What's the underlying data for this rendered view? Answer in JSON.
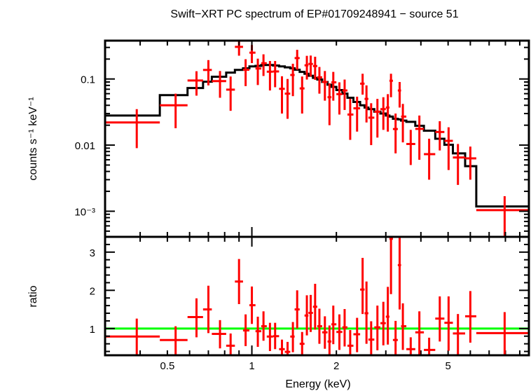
{
  "chart_data": [
    {
      "type": "scatter",
      "panel": "spectrum",
      "title": "Swift−XRT PC spectrum of EP#01709248941 − source 51",
      "ylabel": "counts s⁻¹ keV⁻¹",
      "xlabel": "Energy (keV)",
      "xscale": "log",
      "yscale": "log",
      "xlim": [
        0.3,
        9.7
      ],
      "ylim": [
        0.00041,
        0.38
      ],
      "x_ticks": [
        {
          "v": 0.5,
          "label": "0.5"
        },
        {
          "v": 1,
          "label": "1"
        },
        {
          "v": 2,
          "label": "2"
        },
        {
          "v": 5,
          "label": "5"
        }
      ],
      "y_ticks": [
        {
          "v": 0.1,
          "label": "0.1"
        },
        {
          "v": 0.01,
          "label": "0.01"
        },
        {
          "v": 0.001,
          "label": "10⁻³"
        }
      ],
      "data_color": "#ff0000",
      "model_color": "#000000",
      "bins": [
        [
          0.3,
          0.47
        ],
        [
          0.47,
          0.59
        ],
        [
          0.59,
          0.67
        ],
        [
          0.67,
          0.72
        ],
        [
          0.72,
          0.81
        ],
        [
          0.81,
          0.87
        ],
        [
          0.87,
          0.93
        ],
        [
          0.93,
          0.98
        ],
        [
          0.98,
          1.03
        ],
        [
          1.03,
          1.08
        ],
        [
          1.08,
          1.13
        ],
        [
          1.13,
          1.19
        ],
        [
          1.19,
          1.25
        ],
        [
          1.25,
          1.31
        ],
        [
          1.31,
          1.37
        ],
        [
          1.37,
          1.42
        ],
        [
          1.42,
          1.48
        ],
        [
          1.48,
          1.54
        ],
        [
          1.54,
          1.59
        ],
        [
          1.59,
          1.65
        ],
        [
          1.65,
          1.71
        ],
        [
          1.71,
          1.78
        ],
        [
          1.78,
          1.86
        ],
        [
          1.86,
          1.92
        ],
        [
          1.92,
          2.0
        ],
        [
          2.0,
          2.1
        ],
        [
          2.1,
          2.19
        ],
        [
          2.19,
          2.3
        ],
        [
          2.3,
          2.43
        ],
        [
          2.43,
          2.52
        ],
        [
          2.52,
          2.6
        ],
        [
          2.6,
          2.73
        ],
        [
          2.73,
          2.87
        ],
        [
          2.87,
          3.0
        ],
        [
          3.0,
          3.09
        ],
        [
          3.09,
          3.18
        ],
        [
          3.18,
          3.31
        ],
        [
          3.31,
          3.4
        ],
        [
          3.4,
          3.55
        ],
        [
          3.55,
          3.82
        ],
        [
          3.82,
          4.1
        ],
        [
          4.1,
          4.5
        ],
        [
          4.5,
          4.85
        ],
        [
          4.85,
          5.2
        ],
        [
          5.2,
          5.75
        ],
        [
          5.75,
          6.3
        ],
        [
          6.3,
          10.0
        ]
      ],
      "energy": [
        0.389,
        0.535,
        0.635,
        0.7,
        0.77,
        0.84,
        0.9,
        0.95,
        1.0,
        1.05,
        1.1,
        1.16,
        1.21,
        1.28,
        1.34,
        1.4,
        1.45,
        1.51,
        1.57,
        1.62,
        1.68,
        1.74,
        1.82,
        1.89,
        1.95,
        2.05,
        2.14,
        2.24,
        2.37,
        2.48,
        2.56,
        2.66,
        2.8,
        2.94,
        3.05,
        3.13,
        3.25,
        3.36,
        3.45,
        3.68,
        3.95,
        4.28,
        4.67,
        5.02,
        5.42,
        6.0,
        7.95
      ],
      "rate": [
        0.022,
        0.04,
        0.095,
        0.137,
        0.093,
        0.069,
        0.306,
        0.138,
        0.25,
        0.144,
        0.173,
        0.129,
        0.13,
        0.071,
        0.06,
        0.115,
        0.207,
        0.072,
        0.161,
        0.169,
        0.157,
        0.106,
        0.09,
        0.053,
        0.089,
        0.059,
        0.067,
        0.029,
        0.036,
        0.085,
        0.05,
        0.026,
        0.032,
        0.035,
        0.037,
        0.094,
        0.0175,
        0.067,
        0.027,
        0.0104,
        0.0176,
        0.0073,
        0.0158,
        0.0116,
        0.0065,
        0.0063,
        0.00104
      ],
      "rate_lo": [
        0.009,
        0.018,
        0.056,
        0.08,
        0.052,
        0.033,
        0.225,
        0.078,
        0.174,
        0.081,
        0.111,
        0.067,
        0.075,
        0.03,
        0.025,
        0.055,
        0.138,
        0.03,
        0.098,
        0.109,
        0.097,
        0.06,
        0.047,
        0.02,
        0.047,
        0.029,
        0.034,
        0.012,
        0.016,
        0.058,
        0.022,
        0.01,
        0.013,
        0.017,
        0.016,
        0.053,
        0.0075,
        0.037,
        0.011,
        0.005,
        0.006,
        0.003,
        0.0083,
        0.0042,
        0.0025,
        0.003,
        0.0003
      ],
      "rate_hi": [
        0.035,
        0.06,
        0.131,
        0.193,
        0.132,
        0.109,
        0.386,
        0.199,
        0.326,
        0.203,
        0.236,
        0.187,
        0.187,
        0.11,
        0.1,
        0.17,
        0.276,
        0.109,
        0.224,
        0.226,
        0.217,
        0.152,
        0.132,
        0.086,
        0.128,
        0.089,
        0.098,
        0.05,
        0.054,
        0.12,
        0.08,
        0.043,
        0.05,
        0.053,
        0.059,
        0.12,
        0.03,
        0.09,
        0.042,
        0.017,
        0.028,
        0.0125,
        0.023,
        0.0186,
        0.0104,
        0.0095,
        0.00169
      ],
      "model": [
        0.028,
        0.057,
        0.073,
        0.091,
        0.108,
        0.125,
        0.137,
        0.145,
        0.155,
        0.158,
        0.163,
        0.163,
        0.16,
        0.155,
        0.15,
        0.145,
        0.138,
        0.128,
        0.12,
        0.112,
        0.104,
        0.098,
        0.09,
        0.082,
        0.076,
        0.068,
        0.06,
        0.052,
        0.045,
        0.04,
        0.037,
        0.035,
        0.032,
        0.03,
        0.028,
        0.027,
        0.025,
        0.0245,
        0.0235,
        0.0225,
        0.0196,
        0.0165,
        0.0125,
        0.0101,
        0.0075,
        0.0048,
        0.00118
      ]
    },
    {
      "type": "scatter",
      "panel": "ratio",
      "ylabel": "ratio",
      "xlabel": "Energy (keV)",
      "xscale": "log",
      "xlim": [
        0.3,
        9.7
      ],
      "ylim": [
        0.3,
        3.4
      ],
      "y_ticks": [
        {
          "v": 1,
          "label": "1"
        },
        {
          "v": 2,
          "label": "2"
        },
        {
          "v": 3,
          "label": "3"
        }
      ],
      "reference_line": 1,
      "reference_color": "#00ff00",
      "ratio": [
        0.79,
        0.7,
        1.3,
        1.5,
        0.86,
        0.55,
        2.23,
        0.95,
        1.61,
        0.93,
        1.06,
        0.79,
        0.8,
        0.46,
        0.39,
        0.79,
        1.5,
        0.6,
        1.34,
        1.41,
        1.57,
        1.06,
        0.9,
        0.66,
        1.11,
        0.91,
        1.03,
        0.55,
        0.85,
        2.02,
        1.4,
        0.71,
        1.03,
        1.14,
        1.31,
        3.35,
        0.7,
        2.66,
        1.06,
        0.46,
        0.9,
        0.44,
        1.26,
        1.15,
        0.87,
        1.32,
        0.88
      ],
      "ratio_lo": [
        0.3,
        0.3,
        0.77,
        0.88,
        0.48,
        0.3,
        1.64,
        0.54,
        1.12,
        0.52,
        0.68,
        0.41,
        0.46,
        0.3,
        0.3,
        0.38,
        1.0,
        0.3,
        0.82,
        0.91,
        0.97,
        0.6,
        0.47,
        0.3,
        0.59,
        0.44,
        0.53,
        0.3,
        0.38,
        1.38,
        0.6,
        0.3,
        0.43,
        0.56,
        0.58,
        1.9,
        0.3,
        1.5,
        0.44,
        0.3,
        0.3,
        0.3,
        0.66,
        0.42,
        0.3,
        0.63,
        0.3
      ],
      "ratio_hi": [
        1.26,
        1.06,
        1.79,
        2.12,
        1.22,
        0.87,
        2.82,
        1.37,
        2.1,
        1.31,
        1.45,
        1.15,
        1.15,
        0.71,
        0.65,
        1.17,
        2.0,
        0.91,
        1.87,
        1.88,
        2.17,
        1.52,
        1.32,
        1.08,
        1.6,
        1.37,
        1.51,
        0.96,
        1.28,
        2.85,
        2.23,
        1.19,
        1.6,
        1.7,
        2.09,
        3.4,
        1.2,
        3.4,
        1.66,
        0.77,
        1.45,
        0.76,
        1.84,
        1.84,
        1.38,
        1.98,
        1.43
      ]
    }
  ]
}
